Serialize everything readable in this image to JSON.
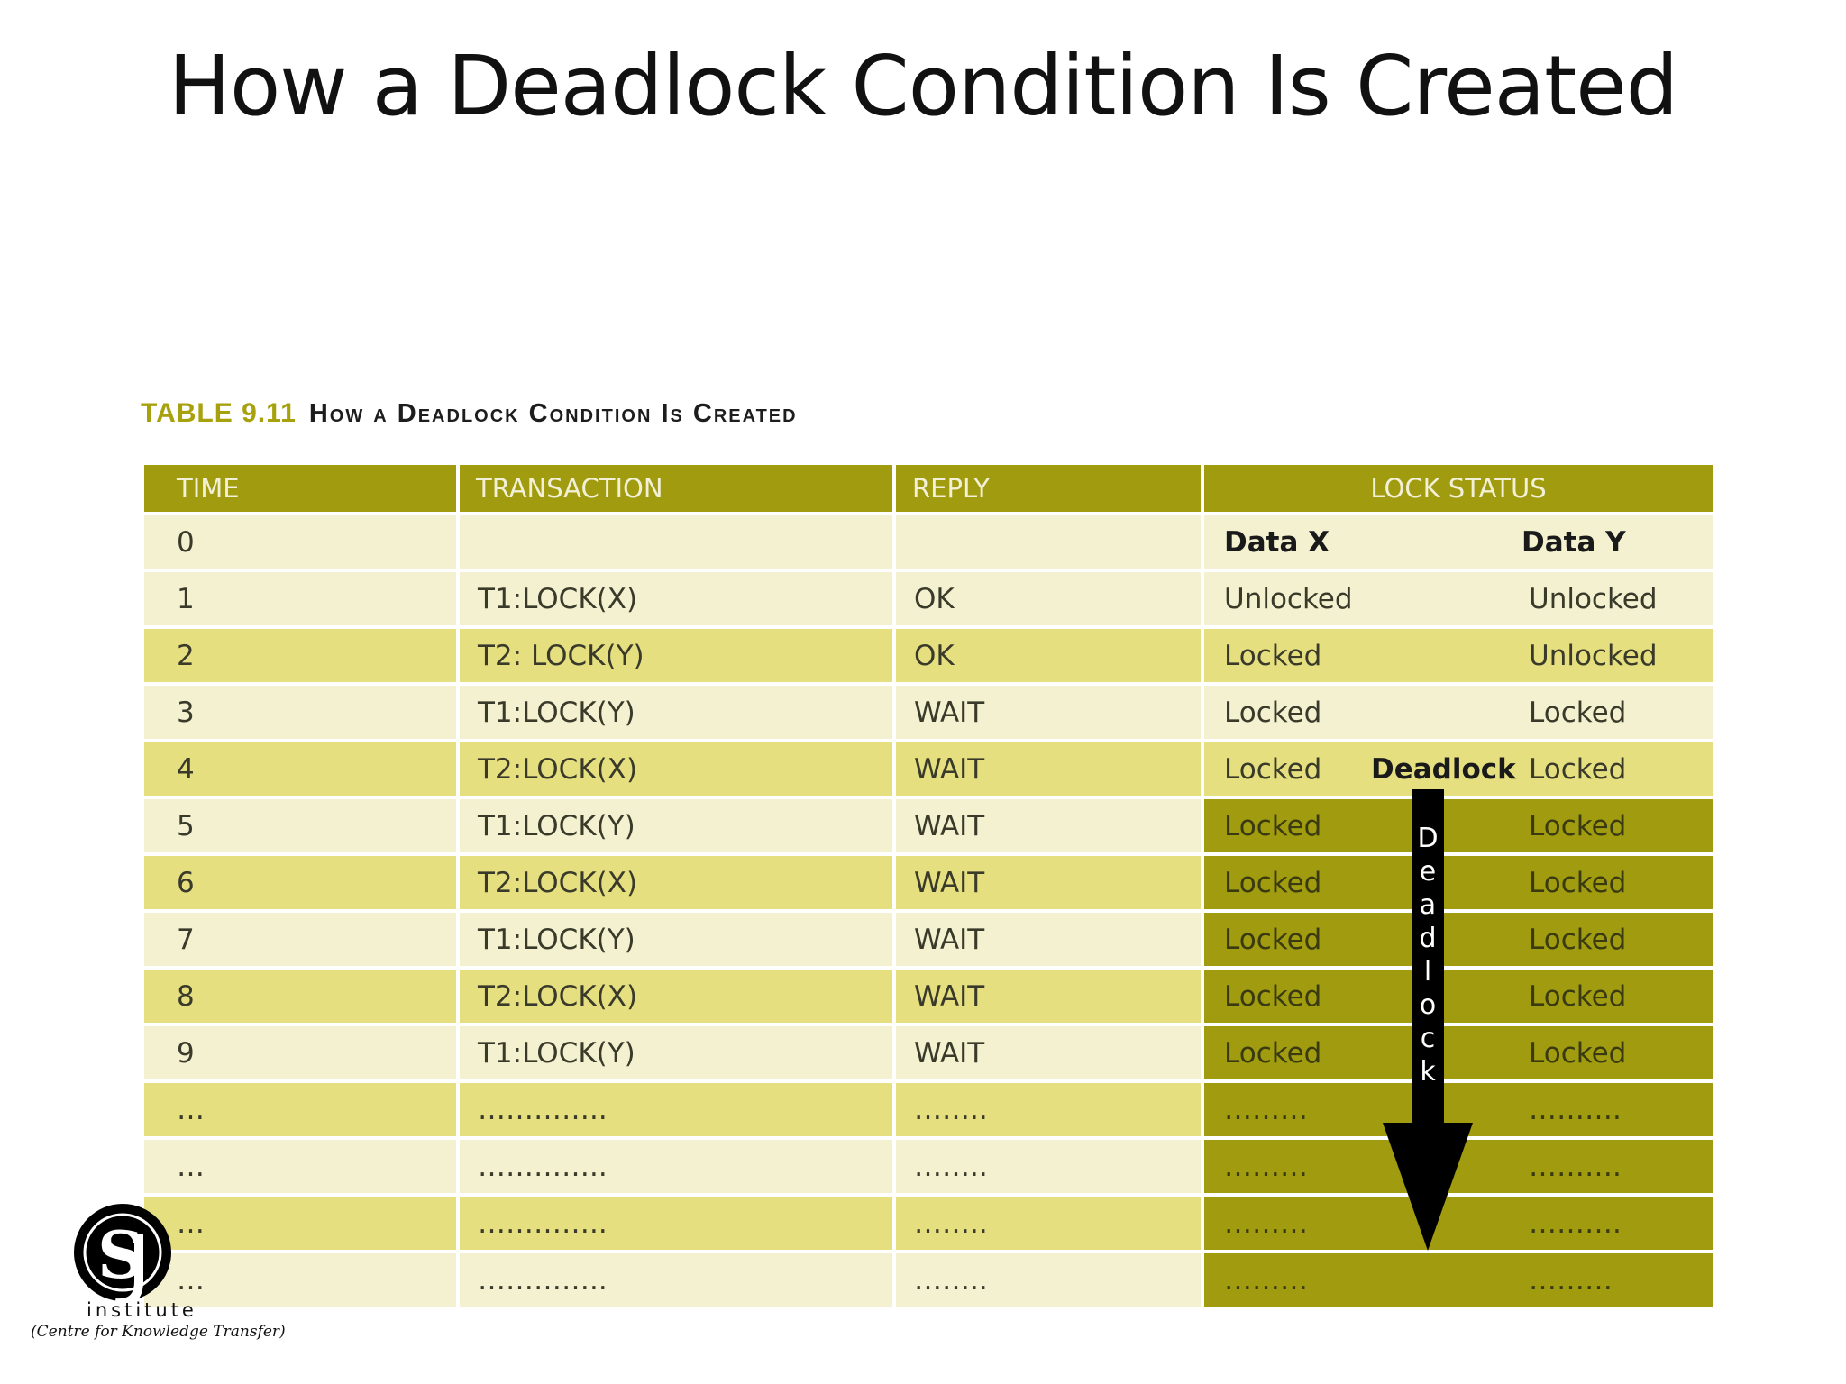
{
  "title": "How a Deadlock Condition Is Created",
  "caption": {
    "label": "TABLE 9.11",
    "text": "How a Deadlock Condition Is Created"
  },
  "table": {
    "headers": [
      "TIME",
      "TRANSACTION",
      "REPLY",
      "LOCK STATUS"
    ],
    "subheaders": {
      "x": "Data X",
      "y": "Data Y"
    },
    "rows": [
      {
        "time": "1",
        "tx": "T1:LOCK(X)",
        "reply": "OK",
        "x": "Unlocked",
        "y": "Unlocked",
        "mid": ""
      },
      {
        "time": "2",
        "tx": "T2: LOCK(Y)",
        "reply": "OK",
        "x": "Locked",
        "y": "Unlocked",
        "mid": ""
      },
      {
        "time": "3",
        "tx": "T1:LOCK(Y)",
        "reply": "WAIT",
        "x": "Locked",
        "y": "Locked",
        "mid": ""
      },
      {
        "time": "4",
        "tx": "T2:LOCK(X)",
        "reply": "WAIT",
        "x": "Locked",
        "y": "Locked",
        "mid": "Deadlock"
      },
      {
        "time": "5",
        "tx": "T1:LOCK(Y)",
        "reply": "WAIT",
        "x": "Locked",
        "y": "Locked",
        "mid": ""
      },
      {
        "time": "6",
        "tx": "T2:LOCK(X)",
        "reply": "WAIT",
        "x": "Locked",
        "y": "Locked",
        "mid": ""
      },
      {
        "time": "7",
        "tx": "T1:LOCK(Y)",
        "reply": "WAIT",
        "x": "Locked",
        "y": "Locked",
        "mid": ""
      },
      {
        "time": "8",
        "tx": "T2:LOCK(X)",
        "reply": "WAIT",
        "x": "Locked",
        "y": "Locked",
        "mid": ""
      },
      {
        "time": "9",
        "tx": "T1:LOCK(Y)",
        "reply": "WAIT",
        "x": "Locked",
        "y": "Locked",
        "mid": ""
      },
      {
        "time": "…",
        "tx": "…………..",
        "reply": "……..",
        "x": "………",
        "y": "……….",
        "mid": ""
      },
      {
        "time": "…",
        "tx": "…………..",
        "reply": "……..",
        "x": "………",
        "y": "……….",
        "mid": ""
      },
      {
        "time": "…",
        "tx": "…………..",
        "reply": "……..",
        "x": "………",
        "y": "……….",
        "mid": ""
      },
      {
        "time": "…",
        "tx": "…………..",
        "reply": "……..",
        "x": "………",
        "y": "………",
        "mid": ""
      }
    ],
    "time0": "0"
  },
  "arrow": {
    "letters": [
      "D",
      "e",
      "a",
      "d",
      "l",
      "o",
      "c",
      "k"
    ]
  },
  "logo": {
    "mark": "SJ",
    "word": "institute",
    "subtitle": "(Centre for Knowledge Transfer)"
  },
  "colors": {
    "header": "#a09b0f",
    "row_light": "#f3f1cf",
    "row_mid": "#e6df80",
    "deadlock_block": "#a09b0f",
    "caption_label": "#a7a10e"
  }
}
